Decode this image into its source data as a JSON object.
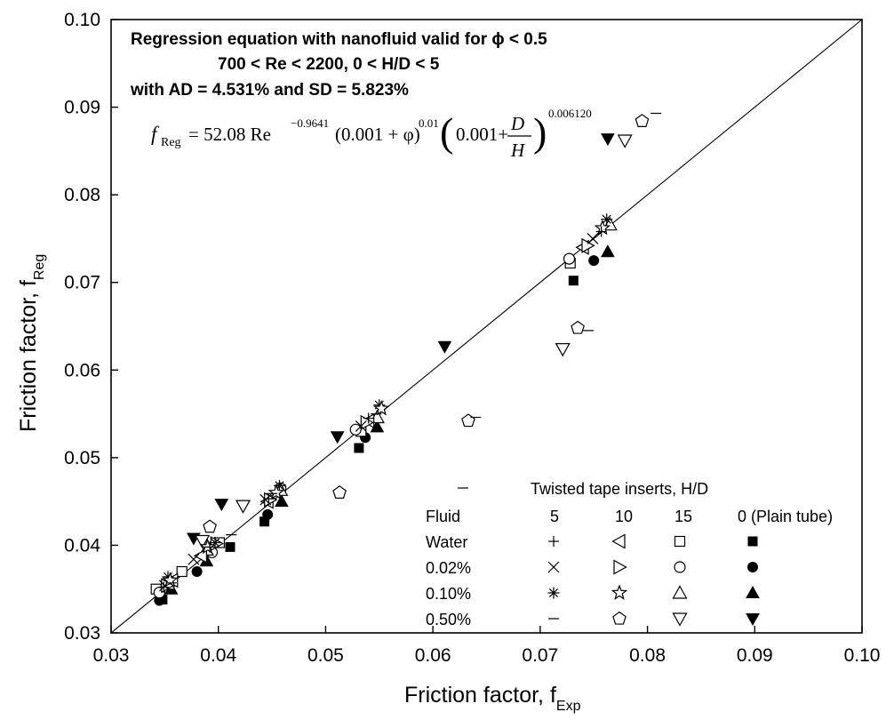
{
  "chart_data": {
    "type": "scatter",
    "x_label": "Friction factor, f",
    "x_label_sub": "Exp",
    "y_label": "Friction factor, f",
    "y_label_sub": "Reg",
    "xlim": [
      0.03,
      0.1
    ],
    "ylim": [
      0.03,
      0.1
    ],
    "x_ticks": [
      "0.03",
      "0.04",
      "0.05",
      "0.06",
      "0.07",
      "0.08",
      "0.09",
      "0.10"
    ],
    "y_ticks": [
      "0.03",
      "0.04",
      "0.05",
      "0.06",
      "0.07",
      "0.08",
      "0.09",
      "0.10"
    ],
    "grid": false,
    "reference_line": {
      "x": [
        0.03,
        0.1
      ],
      "y": [
        0.03,
        0.1
      ]
    },
    "annotations": {
      "line1": "Regression equation with nanofluid valid for ϕ < 0.5",
      "line2": "700 < Re < 2200, 0 < H/D < 5",
      "line3": "with AD = 4.531% and SD = 5.823%"
    },
    "equation": {
      "lhs": "f",
      "lhs_sub": "Reg",
      "eq": "= 52.08 Re",
      "re_exp": "−0.9641",
      "term1": "(0.001 + φ)",
      "term1_exp": "0.01",
      "term2_open": "(",
      "term2_const": "0.001+",
      "frac_num": "D",
      "frac_den": "H",
      "term2_close": ")",
      "term2_exp": "0.006120"
    },
    "legend": {
      "title": "Twisted tape inserts, H/D",
      "fluid_header": "Fluid",
      "columns": [
        "5",
        "10",
        "15",
        "0 (Plain tube)"
      ],
      "rows": [
        "Water",
        "0.02%",
        "0.10%",
        "0.50%"
      ],
      "symbols": [
        [
          "plus",
          "triangle-left-open",
          "square-open",
          "square-filled"
        ],
        [
          "cross",
          "triangle-right-open",
          "circle-open",
          "circle-filled"
        ],
        [
          "asterisk",
          "star-open",
          "triangle-up-open",
          "triangle-up-filled"
        ],
        [
          "dash",
          "pentagon-open",
          "triangle-down-open",
          "triangle-down-filled"
        ]
      ],
      "stray_dash_marker": "dash"
    },
    "series": [
      {
        "marker": "square-filled",
        "points": [
          [
            0.0348,
            0.0338
          ],
          [
            0.0411,
            0.0398
          ],
          [
            0.0443,
            0.0427
          ],
          [
            0.0531,
            0.0511
          ],
          [
            0.0731,
            0.0702
          ]
        ]
      },
      {
        "marker": "circle-filled",
        "points": [
          [
            0.0345,
            0.0337
          ],
          [
            0.038,
            0.037
          ],
          [
            0.0446,
            0.0435
          ],
          [
            0.0537,
            0.0523
          ],
          [
            0.075,
            0.0725
          ]
        ]
      },
      {
        "marker": "triangle-up-filled",
        "points": [
          [
            0.0356,
            0.035
          ],
          [
            0.0389,
            0.0382
          ],
          [
            0.0459,
            0.045
          ],
          [
            0.0548,
            0.0535
          ],
          [
            0.0763,
            0.0735
          ]
        ]
      },
      {
        "marker": "triangle-down-filled",
        "points": [
          [
            0.0377,
            0.0408
          ],
          [
            0.0403,
            0.0447
          ],
          [
            0.0511,
            0.0524
          ],
          [
            0.0611,
            0.0627
          ],
          [
            0.0763,
            0.0864
          ]
        ]
      },
      {
        "marker": "square-open",
        "points": [
          [
            0.0342,
            0.035
          ],
          [
            0.0366,
            0.037
          ],
          [
            0.0401,
            0.0403
          ],
          [
            0.0458,
            0.0463
          ],
          [
            0.0533,
            0.053
          ],
          [
            0.0728,
            0.0722
          ]
        ]
      },
      {
        "marker": "circle-open",
        "points": [
          [
            0.0345,
            0.0346
          ],
          [
            0.0394,
            0.0392
          ],
          [
            0.0458,
            0.0465
          ],
          [
            0.0528,
            0.0532
          ],
          [
            0.0727,
            0.0727
          ]
        ]
      },
      {
        "marker": "triangle-up-open",
        "points": [
          [
            0.0353,
            0.0356
          ],
          [
            0.0389,
            0.0395
          ],
          [
            0.0458,
            0.0463
          ],
          [
            0.0548,
            0.0546
          ],
          [
            0.0765,
            0.0766
          ]
        ]
      },
      {
        "marker": "triangle-down-open",
        "points": [
          [
            0.0385,
            0.0405
          ],
          [
            0.0423,
            0.0445
          ],
          [
            0.0721,
            0.0624
          ],
          [
            0.0779,
            0.0862
          ]
        ]
      },
      {
        "marker": "pentagon-open",
        "points": [
          [
            0.0392,
            0.0421
          ],
          [
            0.0513,
            0.046
          ],
          [
            0.0633,
            0.0542
          ],
          [
            0.0735,
            0.0648
          ],
          [
            0.0795,
            0.0884
          ]
        ]
      },
      {
        "marker": "triangle-left-open",
        "points": [
          [
            0.0357,
            0.036
          ],
          [
            0.0384,
            0.0388
          ],
          [
            0.0446,
            0.045
          ],
          [
            0.054,
            0.0542
          ],
          [
            0.074,
            0.074
          ]
        ]
      },
      {
        "marker": "triangle-right-open",
        "points": [
          [
            0.0352,
            0.0354
          ],
          [
            0.0398,
            0.0402
          ],
          [
            0.0448,
            0.0452
          ],
          [
            0.0538,
            0.054
          ],
          [
            0.0744,
            0.0742
          ]
        ]
      },
      {
        "marker": "cross",
        "points": [
          [
            0.035,
            0.0354
          ],
          [
            0.0377,
            0.0384
          ],
          [
            0.0444,
            0.0452
          ],
          [
            0.0533,
            0.0536
          ],
          [
            0.0749,
            0.075
          ]
        ]
      },
      {
        "marker": "asterisk",
        "points": [
          [
            0.0353,
            0.0364
          ],
          [
            0.0397,
            0.0403
          ],
          [
            0.0457,
            0.0468
          ],
          [
            0.055,
            0.056
          ],
          [
            0.0762,
            0.0772
          ]
        ]
      },
      {
        "marker": "star-open",
        "points": [
          [
            0.0355,
            0.036
          ],
          [
            0.039,
            0.0398
          ],
          [
            0.0454,
            0.046
          ],
          [
            0.0552,
            0.0556
          ],
          [
            0.0758,
            0.0762
          ]
        ]
      },
      {
        "marker": "plus",
        "points": [
          [
            0.0349,
            0.0352
          ],
          [
            0.0392,
            0.0398
          ],
          [
            0.0447,
            0.0453
          ],
          [
            0.054,
            0.0545
          ],
          [
            0.0757,
            0.0758
          ]
        ]
      },
      {
        "marker": "dash",
        "points": [
          [
            0.0356,
            0.0357
          ],
          [
            0.0412,
            0.0412
          ],
          [
            0.045,
            0.0459
          ],
          [
            0.0547,
            0.055
          ],
          [
            0.064,
            0.0546
          ],
          [
            0.0745,
            0.0645
          ],
          [
            0.0808,
            0.0893
          ]
        ]
      }
    ]
  }
}
